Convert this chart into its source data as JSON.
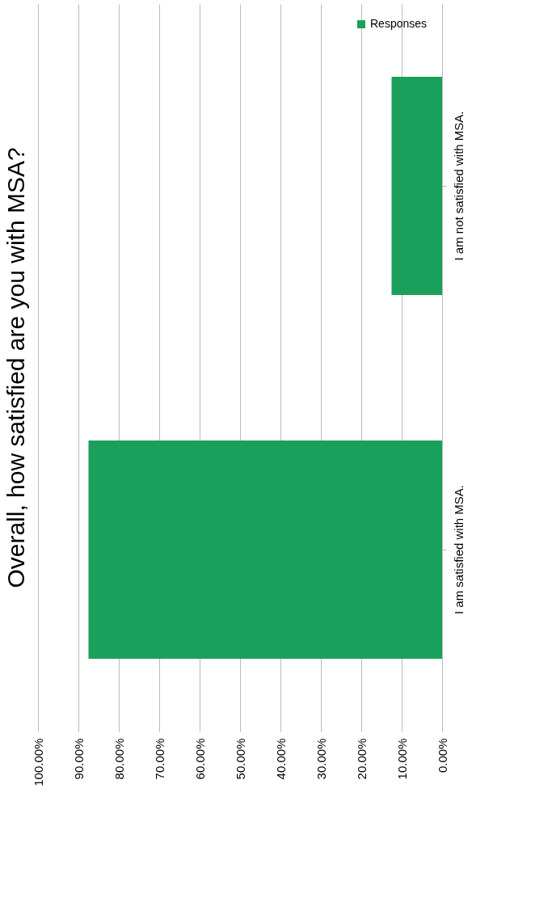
{
  "chart_data": {
    "type": "bar",
    "orientation": "horizontal",
    "title": "Overall, how satisfied are you with MSA?",
    "categories": [
      "I am not satisfied with MSA.",
      "I am satisfied with MSA."
    ],
    "series": [
      {
        "name": "Responses",
        "color": "#1aa05a",
        "values": [
          12.5,
          87.5
        ]
      }
    ],
    "xlim": [
      100,
      0
    ],
    "xticks": [
      {
        "value": 100,
        "label": "100.00%"
      },
      {
        "value": 90,
        "label": "90.00%"
      },
      {
        "value": 80,
        "label": "80.00%"
      },
      {
        "value": 70,
        "label": "70.00%"
      },
      {
        "value": 60,
        "label": "60.00%"
      },
      {
        "value": 50,
        "label": "50.00%"
      },
      {
        "value": 40,
        "label": "40.00%"
      },
      {
        "value": 30,
        "label": "30.00%"
      },
      {
        "value": 20,
        "label": "20.00%"
      },
      {
        "value": 10,
        "label": "10.00%"
      },
      {
        "value": 0,
        "label": "0.00%"
      }
    ],
    "grid": "x",
    "legend": "top right"
  }
}
